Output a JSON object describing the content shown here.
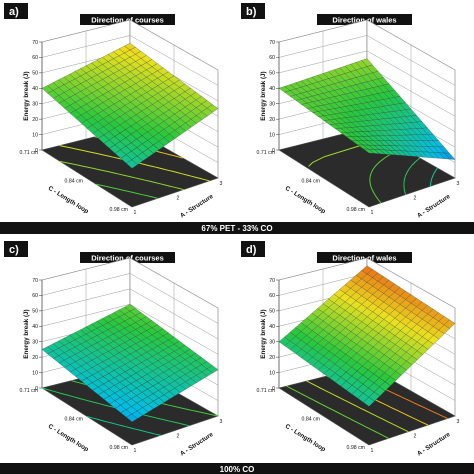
{
  "bands": [
    {
      "text": "67% PET - 33% CO"
    },
    {
      "text": "100% CO"
    }
  ],
  "colors": {
    "band": "#111111",
    "floor": "#2b2b2b",
    "title_bg": "#111111",
    "grid": "#9a9a9a"
  },
  "chart_data": [
    {
      "type": "surface",
      "panel": "a)",
      "title": "Direction of courses",
      "zlabel": "Energy break (J)",
      "xlabel": "A - Structure",
      "ylabel": "C - Length loop",
      "x_ticks": [
        "1",
        "2",
        "3"
      ],
      "y_ticks": [
        "0.71 cm",
        "0.84 cm",
        "0.98 cm"
      ],
      "z_ticks": [
        "0",
        "10",
        "20",
        "30",
        "40",
        "50",
        "60",
        "70"
      ],
      "zlim": [
        0,
        70
      ],
      "corners": {
        "x1_ymin": 40,
        "x3_ymin": 55,
        "x1_ymax": 25,
        "x3_ymax": 45
      }
    },
    {
      "type": "surface",
      "panel": "b)",
      "title": "Direction of wales",
      "zlabel": "Energy break (J)",
      "xlabel": "A - Structure",
      "ylabel": "C - Length loop",
      "x_ticks": [
        "1",
        "2",
        "3"
      ],
      "y_ticks": [
        "0.71 cm",
        "0.84 cm",
        "0.98 cm"
      ],
      "z_ticks": [
        "0",
        "10",
        "20",
        "30",
        "40",
        "50",
        "60",
        "70"
      ],
      "zlim": [
        0,
        70
      ],
      "corners": {
        "x1_ymin": 40,
        "x3_ymin": 45,
        "x1_ymax": 35,
        "x3_ymax": 12
      }
    },
    {
      "type": "surface",
      "panel": "c)",
      "title": "Direction of courses",
      "zlabel": "Energy break (J)",
      "xlabel": "A - Structure",
      "ylabel": "C - Length loop",
      "x_ticks": [
        "1",
        "2",
        "3"
      ],
      "y_ticks": [
        "0.71 cm",
        "0.84 cm",
        "0.98 cm"
      ],
      "z_ticks": [
        "0",
        "10",
        "20",
        "30",
        "40",
        "50",
        "60",
        "70"
      ],
      "zlim": [
        0,
        70
      ],
      "corners": {
        "x1_ymin": 25,
        "x3_ymin": 40,
        "x1_ymax": 15,
        "x3_ymax": 30
      }
    },
    {
      "type": "surface",
      "panel": "d)",
      "title": "Direction of wales",
      "zlabel": "Energy break (J)",
      "xlabel": "A - Structure",
      "ylabel": "C - Length loop",
      "x_ticks": [
        "1",
        "2",
        "3"
      ],
      "y_ticks": [
        "0.71 cm",
        "0.84 cm",
        "0.98 cm"
      ],
      "z_ticks": [
        "0",
        "10",
        "20",
        "30",
        "40",
        "50",
        "60",
        "70"
      ],
      "zlim": [
        0,
        70
      ],
      "corners": {
        "x1_ymin": 30,
        "x3_ymin": 65,
        "x1_ymax": 25,
        "x3_ymax": 60
      }
    }
  ]
}
